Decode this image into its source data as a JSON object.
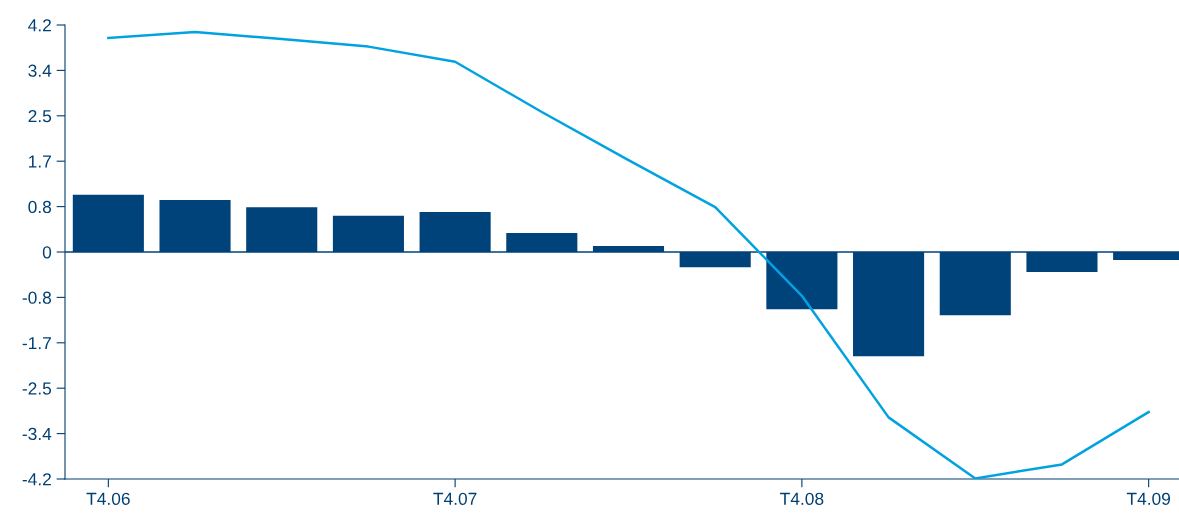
{
  "chart_data": {
    "type": "bar",
    "categories": [
      "T4.06",
      null,
      null,
      null,
      "T4.07",
      null,
      null,
      null,
      "T4.08",
      null,
      null,
      null,
      "T4.09"
    ],
    "series": [
      {
        "color": "#00427a",
        "values": [
          1.06,
          0.96,
          0.83,
          0.67,
          0.74,
          0.35,
          0.11,
          -0.28,
          -1.06,
          -1.93,
          -1.17,
          -0.37,
          -0.15
        ]
      },
      {
        "type": "line",
        "color": "#00a3e0",
        "values": [
          3.96,
          4.07,
          3.94,
          3.8,
          3.52,
          2.59,
          1.7,
          0.83,
          -0.81,
          -3.06,
          -4.19,
          -3.93,
          -2.96
        ]
      }
    ],
    "ylim": [
      -4.2,
      4.2
    ],
    "yticks": [
      {
        "value": -4.2,
        "label": "-4.2"
      },
      {
        "value": -3.36,
        "label": "-3.4"
      },
      {
        "value": -2.52,
        "label": "-2.5"
      },
      {
        "value": -1.68,
        "label": "-1.7"
      },
      {
        "value": -0.84,
        "label": "-0.8"
      },
      {
        "value": 0,
        "label": "0"
      },
      {
        "value": 0.84,
        "label": "0.8"
      },
      {
        "value": 1.68,
        "label": "1.7"
      },
      {
        "value": 2.52,
        "label": "2.5"
      },
      {
        "value": 3.36,
        "label": "3.4"
      },
      {
        "value": 4.2,
        "label": "4.2"
      }
    ],
    "ref_lines": [
      {
        "axis": "y",
        "value": 0,
        "color": "#00427a"
      }
    ],
    "grid": false,
    "legend": false,
    "marker": "none",
    "line_style": "solid"
  }
}
